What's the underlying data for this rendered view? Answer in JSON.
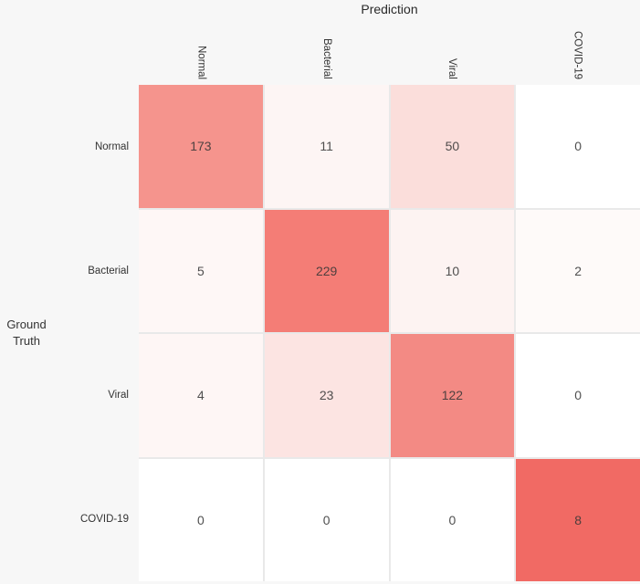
{
  "chart_data": {
    "type": "heatmap",
    "title": "Prediction",
    "xlabel": "Prediction",
    "ylabel": "Ground Truth",
    "ylabel_line1": "Ground",
    "ylabel_line2": "Truth",
    "x_labels": [
      "Normal",
      "Bacterial",
      "Viral",
      "COVID-19"
    ],
    "y_labels": [
      "Normal",
      "Bacterial",
      "Viral",
      "COVID-19"
    ],
    "values": [
      [
        173,
        11,
        50,
        0
      ],
      [
        5,
        229,
        10,
        2
      ],
      [
        4,
        23,
        122,
        0
      ],
      [
        0,
        0,
        0,
        8
      ]
    ],
    "cell_colors": [
      [
        "#f5948d",
        "#fdf5f4",
        "#fbdedb",
        "#ffffff"
      ],
      [
        "#fef7f6",
        "#f47d76",
        "#fdf3f2",
        "#fefaf9"
      ],
      [
        "#fef6f5",
        "#fce4e2",
        "#f38a84",
        "#ffffff"
      ],
      [
        "#ffffff",
        "#ffffff",
        "#ffffff",
        "#f16a64"
      ]
    ],
    "colorscale": {
      "min_color": "#ffffff",
      "max_color": "#f16a64",
      "normalization": "per-row"
    },
    "legend_position": "none",
    "grid": "off"
  },
  "colors": {
    "background": "#f7f7f7",
    "gridline": "#e9e9e9",
    "label_text": "#333333",
    "cell_text": "#373737"
  }
}
